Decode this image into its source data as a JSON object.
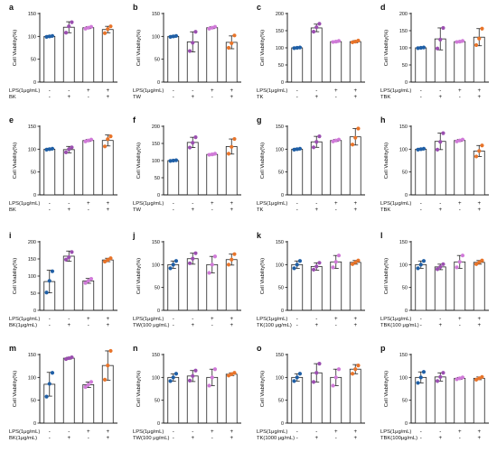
{
  "colors": {
    "group1": "#1f5fa6",
    "group2": "#9b4fb0",
    "group3": "#d07ad8",
    "group4": "#e8742a"
  },
  "chart_data": [
    {
      "panel": "a",
      "type": "bar",
      "ylabel": "Cell Viability(%)",
      "ylim": [
        0,
        150
      ],
      "yticks": [
        0,
        50,
        100,
        150
      ],
      "row_labels": [
        "LPS(1μg/mL)",
        "BK"
      ],
      "signs": [
        [
          "-",
          "-",
          "+",
          "+"
        ],
        [
          "-",
          "+",
          "-",
          "+"
        ]
      ],
      "values": [
        100,
        120,
        119,
        115
      ],
      "errors": [
        2,
        12,
        2,
        7
      ],
      "points": [
        [
          99,
          100,
          101
        ],
        [
          108,
          122,
          131
        ],
        [
          117,
          119,
          121
        ],
        [
          107,
          116,
          122
        ]
      ]
    },
    {
      "panel": "b",
      "type": "bar",
      "ylabel": "Cell Viability(%)",
      "ylim": [
        0,
        150
      ],
      "yticks": [
        0,
        50,
        100,
        150
      ],
      "row_labels": [
        "LPS(1μg/mL)",
        "TW"
      ],
      "signs": [
        [
          "-",
          "-",
          "+",
          "+"
        ],
        [
          "-",
          "+",
          "-",
          "+"
        ]
      ],
      "values": [
        100,
        88,
        119,
        87
      ],
      "errors": [
        2,
        22,
        2,
        14
      ],
      "points": [
        [
          99,
          100,
          101
        ],
        [
          68,
          86,
          110
        ],
        [
          117,
          119,
          121
        ],
        [
          75,
          85,
          102
        ]
      ]
    },
    {
      "panel": "c",
      "type": "bar",
      "ylabel": "Cell Viability(%)",
      "ylim": [
        0,
        200
      ],
      "yticks": [
        0,
        50,
        100,
        150,
        200
      ],
      "row_labels": [
        "LPS(1μg/mL)",
        "TK"
      ],
      "signs": [
        [
          "-",
          "-",
          "+",
          "+"
        ],
        [
          "-",
          "+",
          "-",
          "+"
        ]
      ],
      "values": [
        100,
        158,
        118,
        118
      ],
      "errors": [
        2,
        11,
        2,
        3
      ],
      "points": [
        [
          99,
          100,
          101
        ],
        [
          147,
          160,
          170
        ],
        [
          117,
          118,
          120
        ],
        [
          116,
          118,
          121
        ]
      ]
    },
    {
      "panel": "d",
      "type": "bar",
      "ylabel": "Cell Viability(%)",
      "ylim": [
        0,
        200
      ],
      "yticks": [
        0,
        50,
        100,
        150,
        200
      ],
      "row_labels": [
        "LPS(1μg/mL)",
        "TBK"
      ],
      "signs": [
        [
          "-",
          "-",
          "+",
          "+"
        ],
        [
          "-",
          "+",
          "-",
          "+"
        ]
      ],
      "values": [
        100,
        126,
        118,
        131
      ],
      "errors": [
        2,
        32,
        2,
        25
      ],
      "points": [
        [
          99,
          100,
          101
        ],
        [
          98,
          124,
          158
        ],
        [
          117,
          118,
          120
        ],
        [
          108,
          127,
          156
        ]
      ]
    },
    {
      "panel": "e",
      "type": "bar",
      "ylabel": "Cell Viability(%)",
      "ylim": [
        0,
        150
      ],
      "yticks": [
        0,
        50,
        100,
        150
      ],
      "row_labels": [
        "LPS(1μg/mL)",
        "BK"
      ],
      "signs": [
        [
          "-",
          "-",
          "+",
          "+"
        ],
        [
          "-",
          "+",
          "-",
          "+"
        ]
      ],
      "values": [
        100,
        99,
        119,
        119
      ],
      "errors": [
        2,
        7,
        2,
        12
      ],
      "points": [
        [
          99,
          100,
          101
        ],
        [
          93,
          100,
          104
        ],
        [
          117,
          119,
          121
        ],
        [
          106,
          122,
          128
        ]
      ]
    },
    {
      "panel": "f",
      "type": "bar",
      "ylabel": "Cell Viability(%)",
      "ylim": [
        0,
        200
      ],
      "yticks": [
        0,
        50,
        100,
        150,
        200
      ],
      "row_labels": [
        "LPS(1μg/mL)",
        "TW"
      ],
      "signs": [
        [
          "-",
          "-",
          "+",
          "+"
        ],
        [
          "-",
          "+",
          "-",
          "+"
        ]
      ],
      "values": [
        100,
        153,
        118,
        141
      ],
      "errors": [
        2,
        15,
        2,
        22
      ],
      "points": [
        [
          99,
          100,
          101
        ],
        [
          138,
          152,
          168
        ],
        [
          117,
          118,
          120
        ],
        [
          120,
          140,
          163
        ]
      ]
    },
    {
      "panel": "g",
      "type": "bar",
      "ylabel": "Cell Viability(%)",
      "ylim": [
        0,
        150
      ],
      "yticks": [
        0,
        50,
        100,
        150
      ],
      "row_labels": [
        "LPS(1μg/mL)",
        "TK"
      ],
      "signs": [
        [
          "-",
          "-",
          "+",
          "+"
        ],
        [
          "-",
          "+",
          "-",
          "+"
        ]
      ],
      "values": [
        100,
        116,
        119,
        127
      ],
      "errors": [
        2,
        12,
        2,
        18
      ],
      "points": [
        [
          99,
          100,
          101
        ],
        [
          104,
          116,
          128
        ],
        [
          117,
          119,
          121
        ],
        [
          110,
          125,
          145
        ]
      ]
    },
    {
      "panel": "h",
      "type": "bar",
      "ylabel": "Cell Viability(%)",
      "ylim": [
        0,
        150
      ],
      "yticks": [
        0,
        50,
        100,
        150
      ],
      "row_labels": [
        "LPS(1μg/mL)",
        "TBK"
      ],
      "signs": [
        [
          "-",
          "-",
          "+",
          "+"
        ],
        [
          "-",
          "+",
          "-",
          "+"
        ]
      ],
      "values": [
        100,
        117,
        119,
        96
      ],
      "errors": [
        2,
        18,
        2,
        12
      ],
      "points": [
        [
          99,
          100,
          101
        ],
        [
          99,
          116,
          135
        ],
        [
          117,
          119,
          121
        ],
        [
          84,
          96,
          108
        ]
      ]
    },
    {
      "panel": "i",
      "type": "bar",
      "ylabel": "Cell Viability(%)",
      "ylim": [
        0,
        200
      ],
      "yticks": [
        0,
        50,
        100,
        150,
        200
      ],
      "row_labels": [
        "LPS(1μg/mL)",
        "BK(1μg/mL)"
      ],
      "signs": [
        [
          "-",
          "-",
          "+",
          "+"
        ],
        [
          "-",
          "+",
          "-",
          "+"
        ]
      ],
      "values": [
        84,
        158,
        86,
        147
      ],
      "errors": [
        33,
        15,
        7,
        5
      ],
      "points": [
        [
          52,
          86,
          114
        ],
        [
          148,
          155,
          170
        ],
        [
          80,
          86,
          92
        ],
        [
          142,
          147,
          152
        ]
      ]
    },
    {
      "panel": "j",
      "type": "bar",
      "ylabel": "Cell Viability(%)",
      "ylim": [
        0,
        150
      ],
      "yticks": [
        0,
        50,
        100,
        150
      ],
      "row_labels": [
        "LPS(1μg/mL)",
        "TW(100 μg/mL)"
      ],
      "signs": [
        [
          "-",
          "-",
          "+",
          "+"
        ],
        [
          "-",
          "+",
          "-",
          "+"
        ]
      ],
      "values": [
        100,
        113,
        100,
        111
      ],
      "errors": [
        8,
        12,
        18,
        12
      ],
      "points": [
        [
          92,
          100,
          108
        ],
        [
          103,
          113,
          125
        ],
        [
          82,
          100,
          118
        ],
        [
          100,
          111,
          123
        ]
      ]
    },
    {
      "panel": "k",
      "type": "bar",
      "ylabel": "Cell Viability(%)",
      "ylim": [
        0,
        150
      ],
      "yticks": [
        0,
        50,
        100,
        150
      ],
      "row_labels": [
        "LPS(1μg/mL)",
        "TK(100 μg/mL)"
      ],
      "signs": [
        [
          "-",
          "-",
          "+",
          "+"
        ],
        [
          "-",
          "+",
          "-",
          "+"
        ]
      ],
      "values": [
        100,
        96,
        106,
        105
      ],
      "errors": [
        8,
        8,
        14,
        4
      ],
      "points": [
        [
          92,
          100,
          108
        ],
        [
          89,
          96,
          104
        ],
        [
          94,
          106,
          120
        ],
        [
          101,
          105,
          109
        ]
      ]
    },
    {
      "panel": "l",
      "type": "bar",
      "ylabel": "Cell Viability(%)",
      "ylim": [
        0,
        150
      ],
      "yticks": [
        0,
        50,
        100,
        150
      ],
      "row_labels": [
        "LPS(1μg/mL)",
        "TBK(100 μg/mL)"
      ],
      "signs": [
        [
          "-",
          "-",
          "+",
          "+"
        ],
        [
          "-",
          "+",
          "-",
          "+"
        ]
      ],
      "values": [
        100,
        95,
        106,
        105
      ],
      "errors": [
        8,
        6,
        14,
        4
      ],
      "points": [
        [
          92,
          100,
          108
        ],
        [
          90,
          95,
          101
        ],
        [
          94,
          106,
          120
        ],
        [
          101,
          105,
          109
        ]
      ]
    },
    {
      "panel": "m",
      "type": "bar",
      "ylabel": "Cell Viability(%)",
      "ylim": [
        0,
        150
      ],
      "yticks": [
        0,
        50,
        100,
        150
      ],
      "row_labels": [
        "LPS(1μg/mL)",
        "BK(1μg/mL)"
      ],
      "signs": [
        [
          "-",
          "-",
          "+",
          "+"
        ],
        [
          "-",
          "+",
          "-",
          "+"
        ]
      ],
      "values": [
        85,
        142,
        84,
        126
      ],
      "errors": [
        26,
        2,
        6,
        32
      ],
      "points": [
        [
          58,
          86,
          110
        ],
        [
          140,
          142,
          144
        ],
        [
          79,
          84,
          90
        ],
        [
          95,
          126,
          158
        ]
      ]
    },
    {
      "panel": "n",
      "type": "bar",
      "ylabel": "Cell Viability(%)",
      "ylim": [
        0,
        150
      ],
      "yticks": [
        0,
        50,
        100,
        150
      ],
      "row_labels": [
        "LPS(1μg/mL)",
        "TW(100 μg/mL)"
      ],
      "signs": [
        [
          "-",
          "-",
          "+",
          "+"
        ],
        [
          "-",
          "+",
          "-",
          "+"
        ]
      ],
      "values": [
        100,
        103,
        100,
        107
      ],
      "errors": [
        8,
        12,
        18,
        3
      ],
      "points": [
        [
          92,
          100,
          108
        ],
        [
          93,
          103,
          115
        ],
        [
          82,
          100,
          118
        ],
        [
          104,
          107,
          110
        ]
      ]
    },
    {
      "panel": "o",
      "type": "bar",
      "ylabel": "Cell Viability(%)",
      "ylim": [
        0,
        150
      ],
      "yticks": [
        0,
        50,
        100,
        150
      ],
      "row_labels": [
        "LPS(1μg/mL)",
        "TK(1000 μg/mL)"
      ],
      "signs": [
        [
          "-",
          "-",
          "+",
          "+"
        ],
        [
          "-",
          "+",
          "-",
          "+"
        ]
      ],
      "values": [
        100,
        110,
        100,
        118
      ],
      "errors": [
        8,
        20,
        18,
        10
      ],
      "points": [
        [
          92,
          100,
          108
        ],
        [
          90,
          110,
          130
        ],
        [
          82,
          100,
          118
        ],
        [
          108,
          118,
          126
        ]
      ]
    },
    {
      "panel": "p",
      "type": "bar",
      "ylabel": "Cell Viability(%)",
      "ylim": [
        0,
        150
      ],
      "yticks": [
        0,
        50,
        100,
        150
      ],
      "row_labels": [
        "LPS(1μg/mL)",
        "TBK(100μg/mL)"
      ],
      "signs": [
        [
          "-",
          "-",
          "+",
          "+"
        ],
        [
          "-",
          "+",
          "-",
          "+"
        ]
      ],
      "values": [
        100,
        101,
        98,
        98
      ],
      "errors": [
        12,
        9,
        2,
        3
      ],
      "points": [
        [
          88,
          100,
          112
        ],
        [
          92,
          101,
          110
        ],
        [
          96,
          98,
          100
        ],
        [
          95,
          98,
          101
        ]
      ]
    }
  ]
}
